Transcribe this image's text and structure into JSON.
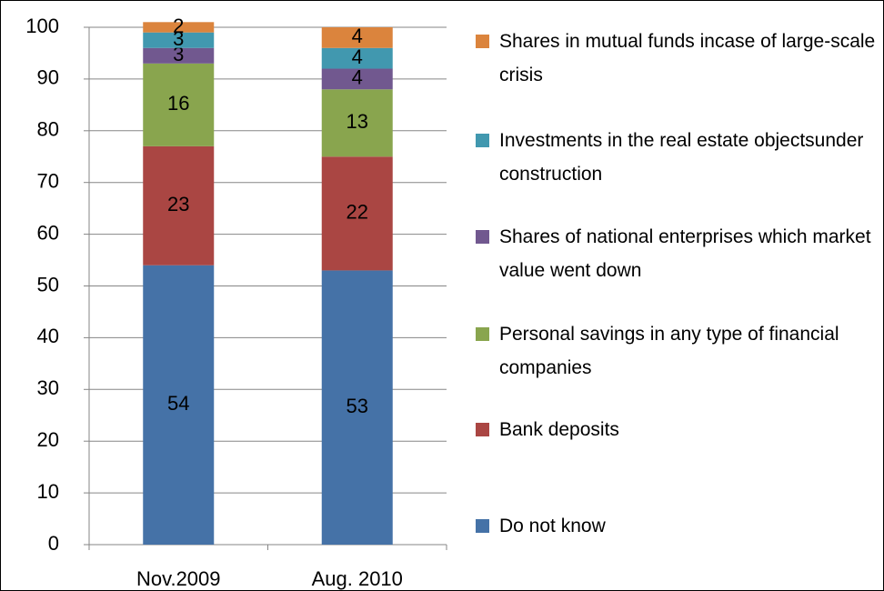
{
  "chart_data": {
    "type": "stacked_bar",
    "categories": [
      "Nov.2009",
      "Aug. 2010"
    ],
    "series": [
      {
        "name": "Do not know",
        "color": "#4572a7",
        "values": [
          54,
          53
        ]
      },
      {
        "name": "Bank deposits",
        "color": "#aa4643",
        "values": [
          23,
          22
        ]
      },
      {
        "name": "Personal savings in any type of financial companies",
        "color": "#89a54e",
        "values": [
          16,
          13
        ]
      },
      {
        "name": "Shares of national enterprises which market value went down",
        "color": "#71588f",
        "values": [
          3,
          4
        ]
      },
      {
        "name": "Investments in the real estate objectsunder construction",
        "color": "#4198af",
        "values": [
          3,
          4
        ]
      },
      {
        "name": "Shares in mutual funds incase of large-scale crisis",
        "color": "#db843d",
        "values": [
          2,
          4
        ]
      }
    ],
    "ylim": [
      0,
      100
    ],
    "yticks": [
      0,
      10,
      20,
      30,
      40,
      50,
      60,
      70,
      80,
      90,
      100
    ],
    "grid": true,
    "legend": "right"
  }
}
